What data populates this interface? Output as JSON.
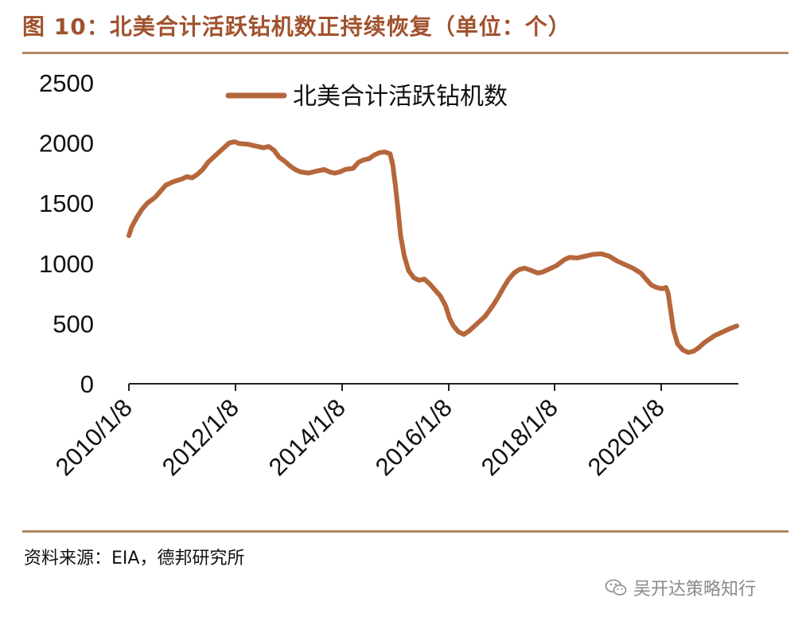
{
  "header": {
    "title": "图 10：北美合计活跃钻机数正持续恢复（单位：个）"
  },
  "footer": {
    "source": "资料来源：EIA，德邦研究所",
    "watermark": "吴开达策略知行",
    "watermark_icon": "wechat-icon"
  },
  "colors": {
    "accent": "#a0522d",
    "series": "#b5673b",
    "rule": "#b08862"
  },
  "chart_data": {
    "type": "line",
    "title": "",
    "xlabel": "",
    "ylabel": "",
    "ylim": [
      0,
      2500
    ],
    "yticks": [
      "0",
      "500",
      "1000",
      "1500",
      "2000",
      "2500"
    ],
    "xticks": [
      "2010/1/8",
      "2012/1/8",
      "2014/1/8",
      "2016/1/8",
      "2018/1/8",
      "2020/1/8"
    ],
    "xlim": [
      2010.0,
      2021.55
    ],
    "legend_position": "top-center",
    "series": [
      {
        "name": "北美合计活跃钻机数",
        "points": [
          [
            2010.0,
            1230
          ],
          [
            2010.05,
            1300
          ],
          [
            2010.15,
            1380
          ],
          [
            2010.25,
            1450
          ],
          [
            2010.35,
            1500
          ],
          [
            2010.5,
            1550
          ],
          [
            2010.6,
            1600
          ],
          [
            2010.7,
            1650
          ],
          [
            2010.85,
            1680
          ],
          [
            2011.0,
            1700
          ],
          [
            2011.1,
            1720
          ],
          [
            2011.2,
            1710
          ],
          [
            2011.3,
            1740
          ],
          [
            2011.4,
            1780
          ],
          [
            2011.5,
            1840
          ],
          [
            2011.65,
            1900
          ],
          [
            2011.8,
            1960
          ],
          [
            2011.9,
            2000
          ],
          [
            2012.0,
            2010
          ],
          [
            2012.1,
            1995
          ],
          [
            2012.25,
            1990
          ],
          [
            2012.4,
            1975
          ],
          [
            2012.55,
            1960
          ],
          [
            2012.65,
            1970
          ],
          [
            2012.75,
            1940
          ],
          [
            2012.85,
            1880
          ],
          [
            2012.95,
            1850
          ],
          [
            2013.05,
            1810
          ],
          [
            2013.15,
            1780
          ],
          [
            2013.25,
            1760
          ],
          [
            2013.4,
            1750
          ],
          [
            2013.55,
            1765
          ],
          [
            2013.7,
            1780
          ],
          [
            2013.8,
            1760
          ],
          [
            2013.9,
            1750
          ],
          [
            2014.0,
            1760
          ],
          [
            2014.1,
            1780
          ],
          [
            2014.25,
            1790
          ],
          [
            2014.35,
            1840
          ],
          [
            2014.45,
            1860
          ],
          [
            2014.55,
            1870
          ],
          [
            2014.65,
            1900
          ],
          [
            2014.75,
            1920
          ],
          [
            2014.85,
            1925
          ],
          [
            2014.95,
            1910
          ],
          [
            2015.0,
            1820
          ],
          [
            2015.05,
            1650
          ],
          [
            2015.1,
            1450
          ],
          [
            2015.15,
            1230
          ],
          [
            2015.22,
            1060
          ],
          [
            2015.3,
            940
          ],
          [
            2015.4,
            880
          ],
          [
            2015.5,
            860
          ],
          [
            2015.6,
            870
          ],
          [
            2015.7,
            830
          ],
          [
            2015.8,
            780
          ],
          [
            2015.9,
            730
          ],
          [
            2016.0,
            650
          ],
          [
            2016.08,
            540
          ],
          [
            2016.15,
            480
          ],
          [
            2016.25,
            430
          ],
          [
            2016.35,
            410
          ],
          [
            2016.45,
            440
          ],
          [
            2016.6,
            500
          ],
          [
            2016.75,
            560
          ],
          [
            2016.9,
            650
          ],
          [
            2017.0,
            720
          ],
          [
            2017.1,
            800
          ],
          [
            2017.2,
            870
          ],
          [
            2017.3,
            920
          ],
          [
            2017.4,
            950
          ],
          [
            2017.5,
            960
          ],
          [
            2017.6,
            945
          ],
          [
            2017.75,
            920
          ],
          [
            2017.85,
            930
          ],
          [
            2017.95,
            950
          ],
          [
            2018.1,
            980
          ],
          [
            2018.25,
            1030
          ],
          [
            2018.35,
            1050
          ],
          [
            2018.5,
            1045
          ],
          [
            2018.65,
            1060
          ],
          [
            2018.8,
            1075
          ],
          [
            2018.95,
            1080
          ],
          [
            2019.1,
            1060
          ],
          [
            2019.25,
            1020
          ],
          [
            2019.4,
            990
          ],
          [
            2019.55,
            960
          ],
          [
            2019.7,
            920
          ],
          [
            2019.8,
            870
          ],
          [
            2019.9,
            820
          ],
          [
            2020.0,
            800
          ],
          [
            2020.1,
            790
          ],
          [
            2020.18,
            800
          ],
          [
            2020.22,
            750
          ],
          [
            2020.27,
            600
          ],
          [
            2020.32,
            450
          ],
          [
            2020.4,
            330
          ],
          [
            2020.5,
            280
          ],
          [
            2020.6,
            260
          ],
          [
            2020.7,
            270
          ],
          [
            2020.8,
            300
          ],
          [
            2020.9,
            340
          ],
          [
            2021.0,
            370
          ],
          [
            2021.1,
            400
          ],
          [
            2021.25,
            430
          ],
          [
            2021.4,
            460
          ],
          [
            2021.52,
            480
          ]
        ]
      }
    ]
  }
}
